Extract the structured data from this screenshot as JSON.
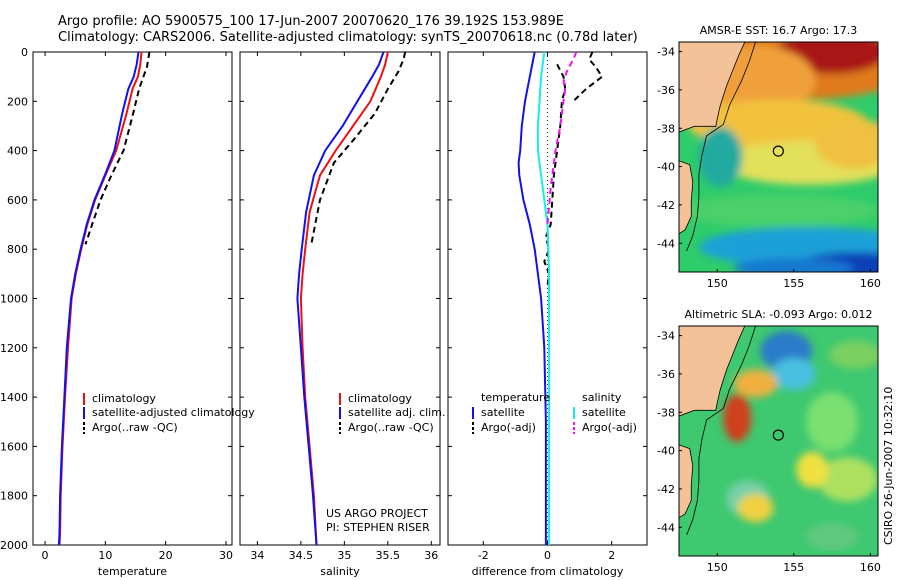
{
  "header": {
    "line1": "Argo profile: AO 5900575_100 17-Jun-2007 20070620_176 39.192S 153.989E",
    "line2": "Climatology: CARS2006. Satellite-adjusted climatology: synTS_20070618.nc (0.78d later)"
  },
  "colors": {
    "climatology": "#ee1111",
    "satellite": "#1111ee",
    "argo": "#000000",
    "sat_cyan": "#11eeee",
    "argo_magenta": "#ee11ee"
  },
  "chart_data": [
    {
      "type": "line",
      "name": "temperature",
      "xlabel": "temperature",
      "ylabel": "",
      "xlim": [
        -2,
        31
      ],
      "ylim": [
        2000,
        0
      ],
      "xticks": [
        0,
        10,
        20,
        30
      ],
      "yticks": [
        0,
        200,
        400,
        600,
        800,
        1000,
        1200,
        1400,
        1600,
        1800,
        2000
      ],
      "legend": [
        "climatology",
        "satellite-adjusted climatology",
        "Argo(..raw -QC)"
      ],
      "series": [
        {
          "name": "climatology",
          "color": "climatology",
          "style": "solid",
          "x": [
            16.0,
            15.8,
            15.4,
            14.5,
            13.5,
            11.8,
            10.0,
            8.3,
            7.0,
            6.0,
            5.1,
            4.4,
            3.8,
            3.3,
            2.9,
            2.6,
            2.5,
            2.4
          ],
          "y": [
            0,
            50,
            100,
            150,
            250,
            400,
            500,
            600,
            700,
            800,
            900,
            1000,
            1200,
            1400,
            1600,
            1800,
            1950,
            2000
          ]
        },
        {
          "name": "satellite-adjusted climatology",
          "color": "satellite",
          "style": "solid",
          "x": [
            15.5,
            15.2,
            14.7,
            13.8,
            12.8,
            11.5,
            9.9,
            8.2,
            6.9,
            5.9,
            5.0,
            4.3,
            3.6,
            3.2,
            2.8,
            2.5,
            2.4,
            2.3
          ],
          "y": [
            0,
            50,
            100,
            150,
            250,
            400,
            500,
            600,
            700,
            800,
            900,
            1000,
            1200,
            1400,
            1600,
            1800,
            1950,
            2000
          ]
        },
        {
          "name": "Argo(..raw -QC)",
          "color": "argo",
          "style": "dashed",
          "x": [
            17.3,
            17.1,
            16.9,
            16.3,
            15.6,
            14.6,
            13.0,
            11.0,
            9.2,
            7.8,
            6.7
          ],
          "y": [
            0,
            30,
            60,
            100,
            150,
            250,
            400,
            500,
            600,
            700,
            780
          ]
        }
      ]
    },
    {
      "type": "line",
      "name": "salinity",
      "xlabel": "salinity",
      "ylabel": "",
      "xlim": [
        33.8,
        36.1
      ],
      "ylim": [
        2000,
        0
      ],
      "xticks": [
        34,
        34.5,
        35,
        35.5,
        36
      ],
      "yticks": [
        0,
        200,
        400,
        600,
        800,
        1000,
        1200,
        1400,
        1600,
        1800,
        2000
      ],
      "legend": [
        "climatology",
        "satellite adj. clim.",
        "Argo(..raw -QC)"
      ],
      "series": [
        {
          "name": "climatology",
          "color": "climatology",
          "style": "solid",
          "x": [
            35.5,
            35.47,
            35.42,
            35.3,
            35.1,
            34.9,
            34.72,
            34.6,
            34.55,
            34.52,
            34.5,
            34.52,
            34.55,
            34.6,
            34.65,
            34.68
          ],
          "y": [
            0,
            50,
            100,
            200,
            300,
            400,
            500,
            650,
            800,
            900,
            1000,
            1200,
            1400,
            1600,
            1800,
            2000
          ]
        },
        {
          "name": "satellite adj. clim.",
          "color": "satellite",
          "style": "solid",
          "x": [
            35.45,
            35.4,
            35.32,
            35.15,
            34.98,
            34.78,
            34.65,
            34.56,
            34.51,
            34.48,
            34.46,
            34.5,
            34.54,
            34.59,
            34.64,
            34.68
          ],
          "y": [
            0,
            50,
            100,
            200,
            300,
            400,
            500,
            650,
            800,
            900,
            1000,
            1200,
            1400,
            1600,
            1800,
            2000
          ]
        },
        {
          "name": "Argo(..raw -QC)",
          "color": "argo",
          "style": "dashed",
          "x": [
            35.7,
            35.68,
            35.62,
            35.5,
            35.35,
            35.12,
            34.88,
            34.72,
            34.62
          ],
          "y": [
            0,
            30,
            80,
            150,
            250,
            350,
            450,
            600,
            780
          ]
        }
      ]
    },
    {
      "type": "line",
      "name": "difference",
      "xlabel": "difference from climatology",
      "ylabel": "",
      "xlim": [
        -3.1,
        3.1
      ],
      "ylim": [
        2000,
        0
      ],
      "xticks": [
        -2,
        0,
        2
      ],
      "yticks": [
        0,
        200,
        400,
        600,
        800,
        1000,
        1200,
        1400,
        1600,
        1800,
        2000
      ],
      "legend_left_header": "temperature",
      "legend_right_header": "salinity",
      "legend": [
        "satellite",
        "Argo(-adj)",
        "satellite",
        "Argo(-adj)"
      ],
      "series": [
        {
          "name": "temperature satellite",
          "color": "satellite",
          "style": "solid",
          "x": [
            -0.4,
            -0.55,
            -0.7,
            -0.8,
            -0.85,
            -0.9,
            -0.88,
            -0.75,
            -0.55,
            -0.4,
            -0.3,
            -0.2,
            -0.1,
            -0.05,
            -0.05,
            -0.05
          ],
          "y": [
            0,
            100,
            200,
            300,
            400,
            450,
            500,
            600,
            700,
            800,
            900,
            1000,
            1200,
            1500,
            1800,
            2000
          ]
        },
        {
          "name": "temperature Argo(-adj)",
          "color": "argo",
          "style": "dashed",
          "x": [
            0.3,
            0.5,
            0.55,
            0.45,
            0.4,
            0.3,
            0.2,
            0.15,
            0.1,
            -0.05,
            0.05,
            -0.1,
            0.05,
            0.0
          ],
          "y": [
            50,
            100,
            150,
            200,
            300,
            400,
            500,
            600,
            700,
            750,
            800,
            850,
            900,
            950
          ]
        },
        {
          "name": "salinity satellite",
          "color": "sat_cyan",
          "style": "solid",
          "x": [
            -0.1,
            -0.2,
            -0.25,
            -0.3,
            -0.3,
            -0.2,
            -0.1,
            0.0,
            0.05,
            0.05,
            0.05
          ],
          "y": [
            0,
            100,
            200,
            300,
            400,
            500,
            600,
            700,
            900,
            1200,
            2000
          ]
        },
        {
          "name": "salinity Argo(-adj)",
          "color": "argo_magenta",
          "style": "dashed",
          "x": [
            0.9,
            0.8,
            0.6,
            0.5,
            0.55,
            0.5,
            0.4,
            0.25,
            0.1,
            0.0
          ],
          "y": [
            0,
            30,
            80,
            120,
            150,
            200,
            300,
            400,
            550,
            700
          ]
        },
        {
          "name": "Argo dashed black near surface",
          "color": "argo",
          "style": "dashed",
          "x": [
            1.4,
            1.3,
            1.5,
            1.7,
            1.2,
            0.8
          ],
          "y": [
            0,
            30,
            60,
            100,
            150,
            200
          ]
        }
      ],
      "zero_line": 0
    },
    {
      "type": "heatmap",
      "name": "AMSR-E SST map",
      "title": "AMSR-E SST: 16.7 Argo: 17.3",
      "xlim": [
        147.5,
        160.5
      ],
      "ylim": [
        -45.5,
        -33.5
      ],
      "xticks": [
        150,
        155,
        160
      ],
      "yticks": [
        -34,
        -36,
        -38,
        -40,
        -42,
        -44
      ],
      "marker": {
        "lon": 153.989,
        "lat": -39.192
      }
    },
    {
      "type": "heatmap",
      "name": "Altimetric SLA map",
      "title": "Altimetric SLA: -0.093 Argo: 0.012",
      "xlim": [
        147.5,
        160.5
      ],
      "ylim": [
        -45.5,
        -33.5
      ],
      "xticks": [
        150,
        155,
        160
      ],
      "yticks": [
        -34,
        -36,
        -38,
        -40,
        -42,
        -44
      ],
      "marker": {
        "lon": 153.989,
        "lat": -39.192
      }
    }
  ],
  "annotations": {
    "project": "US ARGO PROJECT",
    "pi": "PI: STEPHEN RISER",
    "stamp": "CSIRO 26-Jun-2007 10:32:10"
  }
}
